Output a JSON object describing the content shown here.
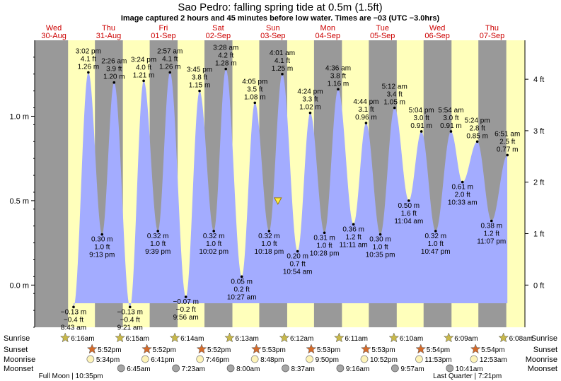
{
  "header": {
    "title": "Sao Pedro: falling  spring tide at 0.5m (1.5ft)",
    "subtitle": "Image captured 2 hours and 45 minutes before low water. Times are −03 (UTC −3.0hrs)"
  },
  "days": [
    {
      "dow": "Wed",
      "date": "30-Aug"
    },
    {
      "dow": "Thu",
      "date": "31-Aug"
    },
    {
      "dow": "Fri",
      "date": "01-Sep"
    },
    {
      "dow": "Sat",
      "date": "02-Sep"
    },
    {
      "dow": "Sun",
      "date": "03-Sep"
    },
    {
      "dow": "Mon",
      "date": "04-Sep"
    },
    {
      "dow": "Tue",
      "date": "05-Sep"
    },
    {
      "dow": "Wed",
      "date": "06-Sep"
    },
    {
      "dow": "Thu",
      "date": "07-Sep"
    }
  ],
  "axes": {
    "left_ticks": [
      "1.0 m",
      "0.5 m",
      "0.0 m"
    ],
    "right_ticks": [
      "4 ft",
      "3 ft",
      "2 ft",
      "1 ft",
      "0 ft"
    ]
  },
  "chart_data": {
    "type": "area",
    "y_unit": "m",
    "ylim": [
      -0.25,
      1.45
    ],
    "x_unit": "days from 2023-08-30 00:00",
    "xlim": [
      -0.35,
      8.6
    ],
    "now_marker": {
      "x": 4.09,
      "y": 0.5
    },
    "points": [
      {
        "x": 0.36,
        "y": -0.13,
        "label": [
          "−0.13 m",
          "−0.4 ft",
          "8:43 am"
        ]
      },
      {
        "x": 0.63,
        "y": 1.26,
        "label": [
          "3:02 pm",
          "4.1 ft",
          "1.26 m"
        ]
      },
      {
        "x": 0.88,
        "y": 0.3,
        "label": [
          "0.30 m",
          "1.0 ft",
          "9:13 pm"
        ]
      },
      {
        "x": 1.1,
        "y": 1.2,
        "label": [
          "2:26 am",
          "3.9 ft",
          "1.20 m"
        ]
      },
      {
        "x": 1.39,
        "y": -0.13,
        "label": [
          "−0.13 m",
          "−0.4 ft",
          "9:21 am"
        ]
      },
      {
        "x": 1.64,
        "y": 1.21,
        "label": [
          "3:24 pm",
          "4.0 ft",
          "1.21 m"
        ]
      },
      {
        "x": 1.9,
        "y": 0.32,
        "label": [
          "0.32 m",
          "1.0 ft",
          "9:39 pm"
        ]
      },
      {
        "x": 2.12,
        "y": 1.26,
        "label": [
          "2:57 am",
          "4.1 ft",
          "1.26 m"
        ]
      },
      {
        "x": 2.41,
        "y": -0.07,
        "label": [
          "−0.07 m",
          "−0.2 ft",
          "9:56 am"
        ]
      },
      {
        "x": 2.66,
        "y": 1.15,
        "label": [
          "3:45 pm",
          "3.8 ft",
          "1.15 m"
        ]
      },
      {
        "x": 2.92,
        "y": 0.32,
        "label": [
          "0.32 m",
          "1.0 ft",
          "10:02 pm"
        ]
      },
      {
        "x": 3.14,
        "y": 1.28,
        "label": [
          "3:28 am",
          "4.2 ft",
          "1.28 m"
        ]
      },
      {
        "x": 3.43,
        "y": 0.05,
        "label": [
          "0.05 m",
          "0.2 ft",
          "10:27 am"
        ]
      },
      {
        "x": 3.67,
        "y": 1.08,
        "label": [
          "4:05 pm",
          "3.5 ft",
          "1.08 m"
        ]
      },
      {
        "x": 3.93,
        "y": 0.32,
        "label": [
          "0.32 m",
          "1.0 ft",
          "10:18 pm"
        ]
      },
      {
        "x": 4.17,
        "y": 1.25,
        "label": [
          "4:01 am",
          "4.1 ft",
          "1.25 m"
        ]
      },
      {
        "x": 4.45,
        "y": 0.2,
        "label": [
          "0.20 m",
          "0.7 ft",
          "10:54 am"
        ]
      },
      {
        "x": 4.68,
        "y": 1.02,
        "label": [
          "4:24 pm",
          "3.3 ft",
          "1.02 m"
        ]
      },
      {
        "x": 4.94,
        "y": 0.31,
        "label": [
          "0.31 m",
          "1.0 ft",
          "10:28 pm"
        ]
      },
      {
        "x": 5.19,
        "y": 1.16,
        "label": [
          "4:36 am",
          "3.8 ft",
          "1.16 m"
        ]
      },
      {
        "x": 5.47,
        "y": 0.36,
        "label": [
          "0.36 m",
          "1.2 ft",
          "11:11 am"
        ]
      },
      {
        "x": 5.7,
        "y": 0.96,
        "label": [
          "4:44 pm",
          "3.1 ft",
          "0.96 m"
        ]
      },
      {
        "x": 5.96,
        "y": 0.3,
        "label": [
          "0.30 m",
          "1.0 ft",
          "10:35 pm"
        ]
      },
      {
        "x": 6.22,
        "y": 1.05,
        "label": [
          "5:12 am",
          "3.4 ft",
          "1.05 m"
        ]
      },
      {
        "x": 6.48,
        "y": 0.5,
        "label": [
          "0.50 m",
          "1.6 ft",
          "11:04 am"
        ]
      },
      {
        "x": 6.71,
        "y": 0.91,
        "label": [
          "5:04 pm",
          "3.0 ft",
          "0.91 m"
        ]
      },
      {
        "x": 6.97,
        "y": 0.32,
        "label": [
          "0.32 m",
          "1.0 ft",
          "10:47 pm"
        ]
      },
      {
        "x": 7.25,
        "y": 0.91,
        "label": [
          "5:54 am",
          "3.0 ft",
          "0.91 m"
        ]
      },
      {
        "x": 7.46,
        "y": 0.61,
        "label": [
          "0.61 m",
          "2.0 ft",
          "10:33 am"
        ]
      },
      {
        "x": 7.73,
        "y": 0.85,
        "label": [
          "5:24 pm",
          "2.8 ft",
          "0.85 m"
        ]
      },
      {
        "x": 7.99,
        "y": 0.38,
        "label": [
          "0.38 m",
          "1.2 ft",
          "11:07 pm"
        ]
      },
      {
        "x": 8.28,
        "y": 0.77,
        "label": [
          "6:51 am",
          "2.5 ft",
          "0.77 m"
        ]
      }
    ],
    "daylight": [
      {
        "rise": 0.26,
        "set": 0.75
      },
      {
        "rise": 1.26,
        "set": 1.75
      },
      {
        "rise": 2.26,
        "set": 2.75
      },
      {
        "rise": 3.26,
        "set": 3.75
      },
      {
        "rise": 4.26,
        "set": 4.75
      },
      {
        "rise": 5.26,
        "set": 5.75
      },
      {
        "rise": 6.26,
        "set": 6.75
      },
      {
        "rise": 7.26,
        "set": 7.75
      },
      {
        "rise": 8.26,
        "set": 8.75
      }
    ]
  },
  "almanac": {
    "labels": [
      "Sunrise",
      "Sunset",
      "Moonrise",
      "Moonset"
    ],
    "sunrise": [
      "6:16am",
      "6:15am",
      "6:14am",
      "6:13am",
      "6:12am",
      "6:11am",
      "6:10am",
      "6:09am",
      "6:08am"
    ],
    "sunset": [
      "5:52pm",
      "5:52pm",
      "5:52pm",
      "5:53pm",
      "5:53pm",
      "5:53pm",
      "5:54pm",
      "5:54pm"
    ],
    "moonrise": [
      "5:34pm",
      "6:41pm",
      "7:46pm",
      "8:48pm",
      "9:50pm",
      "10:52pm",
      "11:53pm",
      "12:53am"
    ],
    "moonset": [
      "6:45am",
      "7:23am",
      "8:00am",
      "8:37am",
      "9:16am",
      "9:57am",
      "10:41am"
    ],
    "phases": [
      "Full Moon | 10:35pm",
      "Last Quarter | 7:21pm"
    ]
  },
  "colors": {
    "night": "#999999",
    "day": "#ffffbb",
    "water": "#a3acff",
    "day_text": "#cc0000",
    "sunrise_star": "#c8b84a",
    "sunset_star": "#d46a2a",
    "moonrise": "#fdf3b8",
    "moonset": "#a6a6a6"
  }
}
